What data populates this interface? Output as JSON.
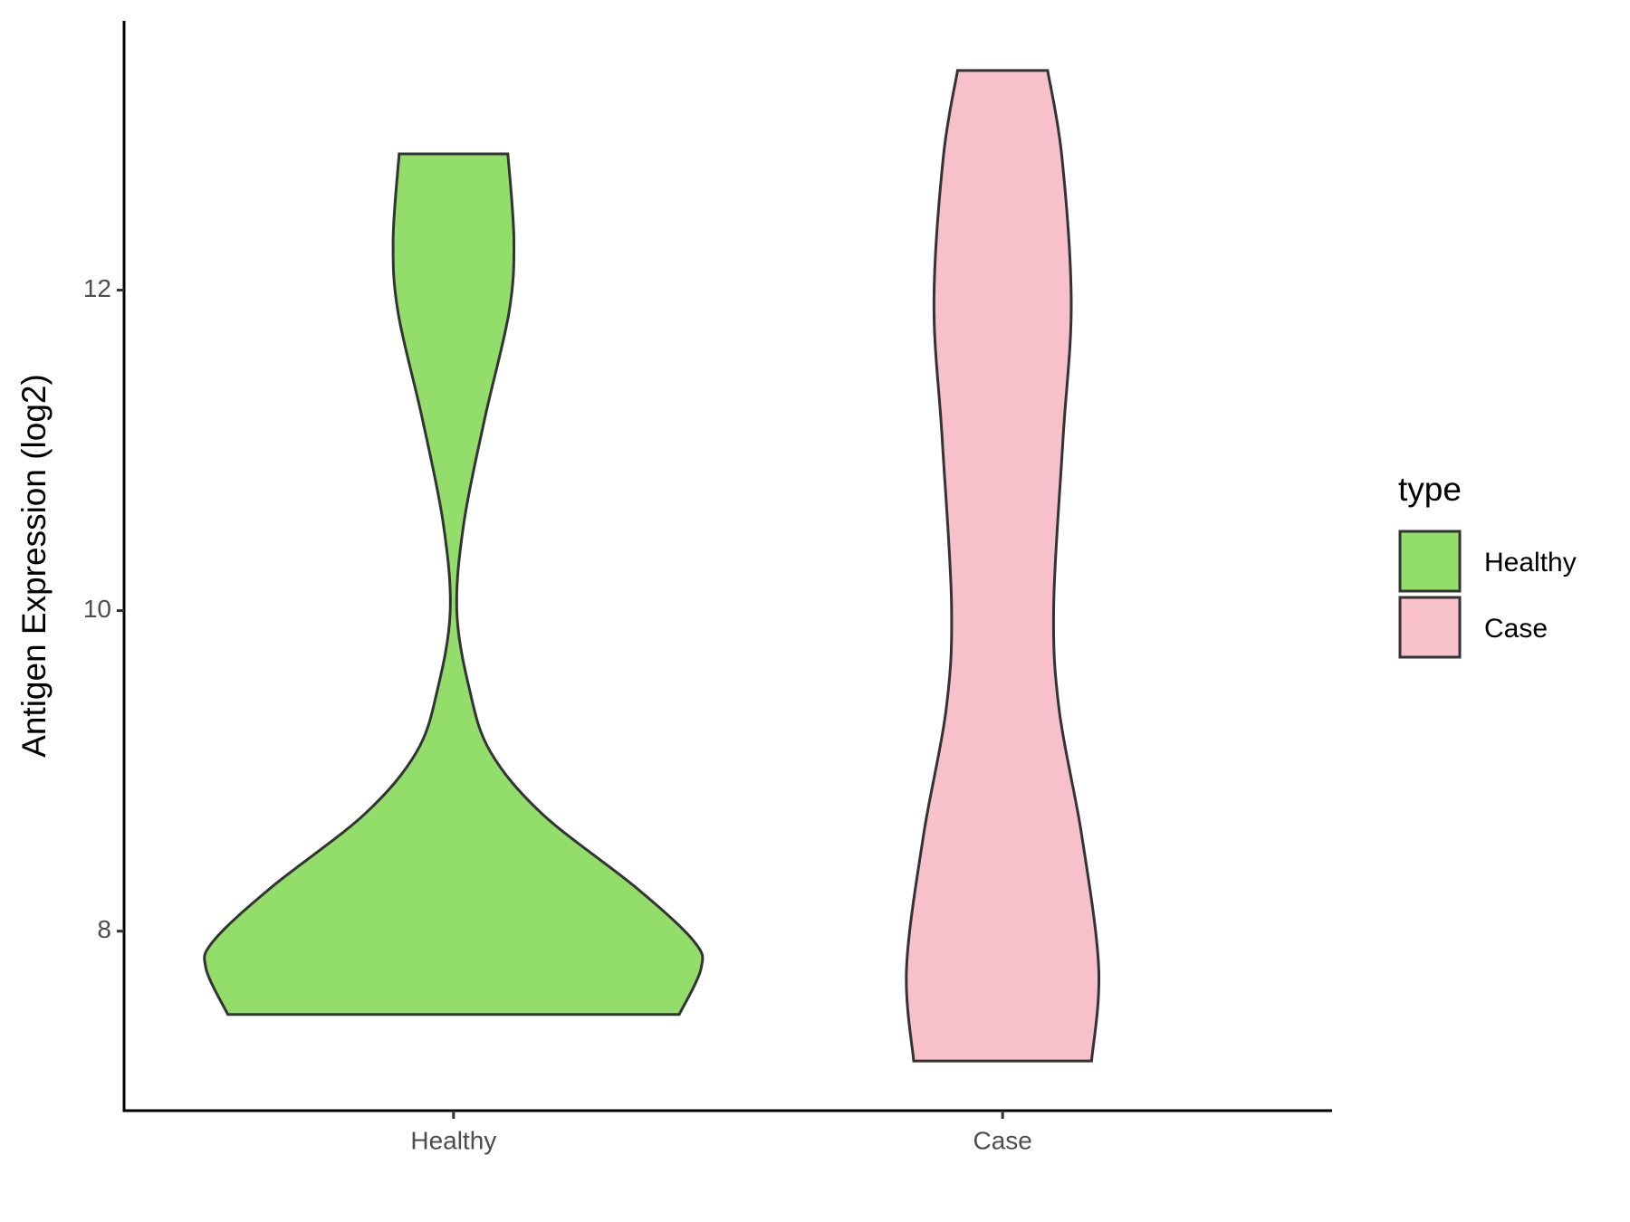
{
  "chart_data": {
    "type": "violin",
    "y_label": "Antigen Expression (log2)",
    "categories": [
      "Healthy",
      "Case"
    ],
    "ylim": [
      6.88,
      13.68
    ],
    "yticks": [
      8,
      10,
      12
    ],
    "legend_title": "type",
    "legend": "right",
    "series": [
      {
        "name": "Healthy",
        "color": "#93dd6a",
        "y": [
          12.85,
          12.31,
          11.86,
          11.2,
          10.55,
          10.0,
          9.51,
          9.12,
          8.73,
          8.27,
          7.94,
          7.77,
          7.48
        ],
        "half_width": [
          0.099,
          0.11,
          0.101,
          0.057,
          0.019,
          0.006,
          0.029,
          0.067,
          0.162,
          0.333,
          0.437,
          0.451,
          0.411
        ]
      },
      {
        "name": "Case",
        "color": "#f7c0cb",
        "y": [
          13.37,
          12.83,
          11.92,
          11.07,
          10.03,
          9.38,
          8.6,
          7.77,
          7.19
        ],
        "half_width": [
          0.082,
          0.108,
          0.125,
          0.11,
          0.093,
          0.103,
          0.144,
          0.175,
          0.162
        ]
      }
    ]
  }
}
